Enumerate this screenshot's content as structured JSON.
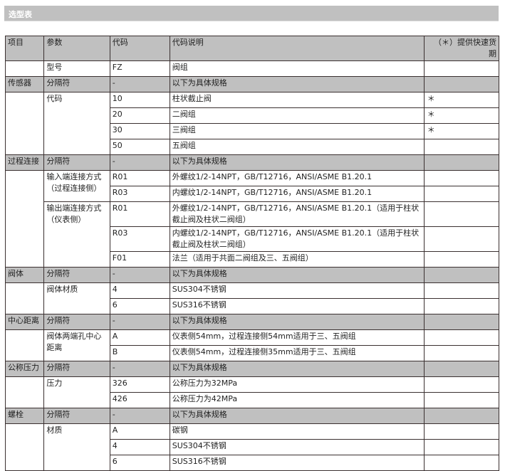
{
  "title": "选型表",
  "header": [
    "项目",
    "参数",
    "代码",
    "代码说明",
    "（＊）提供快速货期"
  ],
  "first_row": {
    "param": "型号",
    "code": "FZ",
    "desc": "阀组"
  },
  "sections": [
    {
      "item": "传感器",
      "sep": {
        "param": "分隔符",
        "code": "-",
        "desc": "以下为具体规格"
      },
      "groups": [
        {
          "param": "代码",
          "options": [
            {
              "code": "10",
              "desc": "柱状截止阀",
              "star": "＊"
            },
            {
              "code": "20",
              "desc": "二阀组",
              "star": "＊"
            },
            {
              "code": "30",
              "desc": "三阀组",
              "star": "＊"
            },
            {
              "code": "50",
              "desc": "五阀组",
              "star": ""
            }
          ]
        }
      ]
    },
    {
      "item": "过程连接",
      "sep": {
        "param": "分隔符",
        "code": "-",
        "desc": "以下为具体规格"
      },
      "groups": [
        {
          "param": "输入端连接方式（过程连接侧）",
          "options": [
            {
              "code": "R01",
              "desc": "外螺纹1/2-14NPT，GB/T12716，ANSI/ASME B1.20.1",
              "star": ""
            },
            {
              "code": "R03",
              "desc": "内螺纹1/2-14NPT，GB/T12716，ANSI/ASME B1.20.1",
              "star": ""
            }
          ]
        },
        {
          "param": "输出端连接方式（仪表侧）",
          "options": [
            {
              "code": "R01",
              "desc": "外螺纹1/2-14NPT，GB/T12716，ANSI/ASME B1.20.1（适用于柱状截止阀及柱状二阀组）",
              "star": "",
              "tall": true
            },
            {
              "code": "R03",
              "desc": "内螺纹1/2-14NPT，GB/T12716，ANSI/ASME B1.20.1（适用于柱状截止阀及柱状二阀组）",
              "star": "",
              "tall": true
            },
            {
              "code": "F01",
              "desc": "法兰（适用于共面二阀组及三、五阀组）",
              "star": ""
            }
          ]
        }
      ]
    },
    {
      "item": "阀体",
      "sep": {
        "param": "分隔符",
        "code": "-",
        "desc": "以下为具体规格"
      },
      "groups": [
        {
          "param": "阀体材质",
          "options": [
            {
              "code": "4",
              "desc": "SUS304不锈钢",
              "star": ""
            },
            {
              "code": "6",
              "desc": "SUS316不锈钢",
              "star": ""
            }
          ]
        }
      ]
    },
    {
      "item": "中心距离",
      "sep": {
        "param": "分隔符",
        "code": "-",
        "desc": "以下为具体规格"
      },
      "groups": [
        {
          "param": "阀体两端孔中心距离",
          "options": [
            {
              "code": "A",
              "desc": "仪表侧54mm，过程连接侧54mm适用于三、五阀组",
              "star": ""
            },
            {
              "code": "B",
              "desc": "仪表侧54mm，过程连接侧35mm适用于三、五阀组",
              "star": ""
            }
          ]
        }
      ]
    },
    {
      "item": "公称压力",
      "sep": {
        "param": "分隔符",
        "code": "-",
        "desc": "以下为具体规格"
      },
      "groups": [
        {
          "param": "压力",
          "options": [
            {
              "code": "326",
              "desc": "公称压力为32MPa",
              "star": ""
            },
            {
              "code": "426",
              "desc": "公称压力为42MPa",
              "star": ""
            }
          ]
        }
      ]
    },
    {
      "item": "螺栓",
      "sep": {
        "param": "分隔符",
        "code": "-",
        "desc": "以下为具体规格"
      },
      "groups": [
        {
          "param": "材质",
          "options": [
            {
              "code": "A",
              "desc": "碳钢",
              "star": ""
            },
            {
              "code": "4",
              "desc": "SUS304不锈钢",
              "star": ""
            },
            {
              "code": "6",
              "desc": "SUS316不锈钢",
              "star": ""
            }
          ]
        }
      ]
    }
  ]
}
